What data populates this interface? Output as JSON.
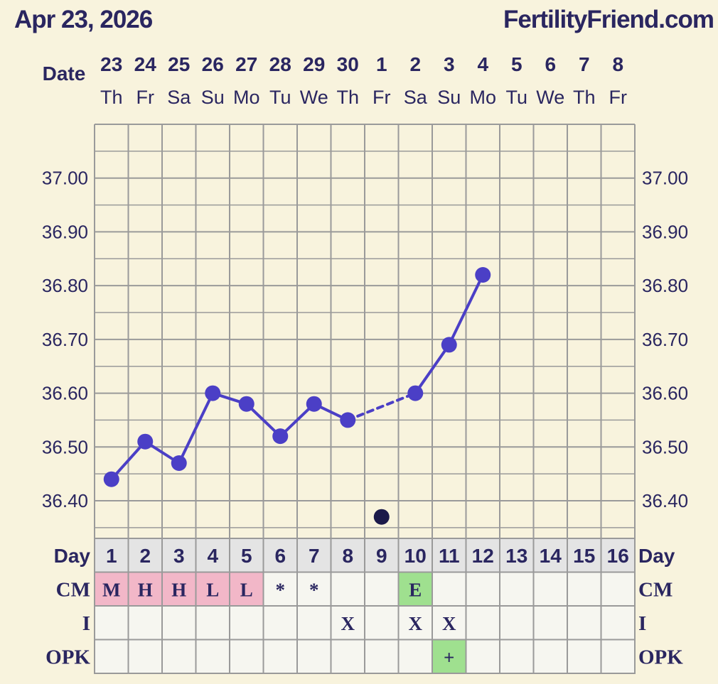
{
  "header": {
    "date": "Apr 23, 2026",
    "site": "FertilityFriend.com"
  },
  "labels": {
    "date": "Date",
    "day": "Day",
    "cm": "CM",
    "i": "I",
    "opk": "OPK"
  },
  "colors": {
    "background": "#f8f3dd",
    "plot_bg": "#f8f3dd",
    "grid": "#9a9a9a",
    "line": "#4b3fc6",
    "dark_dot": "#1c1a4a",
    "text": "#2a2660",
    "day_row_bg": "#e4e4e4",
    "cell_bg": "#f6f6f0",
    "cm_pink": "#f2b7c8",
    "cm_green": "#9fe08f"
  },
  "chart_data": {
    "type": "line",
    "dates": [
      "23",
      "24",
      "25",
      "26",
      "27",
      "28",
      "29",
      "30",
      "1",
      "2",
      "3",
      "4",
      "5",
      "6",
      "7",
      "8"
    ],
    "weekdays": [
      "Th",
      "Fr",
      "Sa",
      "Su",
      "Mo",
      "Tu",
      "We",
      "Th",
      "Fr",
      "Sa",
      "Su",
      "Mo",
      "Tu",
      "We",
      "Th",
      "Fr"
    ],
    "cycle_days": [
      "1",
      "2",
      "3",
      "4",
      "5",
      "6",
      "7",
      "8",
      "9",
      "10",
      "11",
      "12",
      "13",
      "14",
      "15",
      "16"
    ],
    "temperatures": [
      36.44,
      36.51,
      36.47,
      36.6,
      36.58,
      36.52,
      36.58,
      36.55,
      null,
      36.6,
      36.69,
      36.82,
      null,
      null,
      null,
      null
    ],
    "discarded_temperatures": [
      null,
      null,
      null,
      null,
      null,
      null,
      null,
      null,
      36.37,
      null,
      null,
      null,
      null,
      null,
      null,
      null
    ],
    "dashed_segment_between_days": [
      8,
      10
    ],
    "y_ticks": [
      "37.00",
      "36.90",
      "36.80",
      "36.70",
      "36.60",
      "36.50",
      "36.40"
    ],
    "y_tick_values": [
      37.0,
      36.9,
      36.8,
      36.7,
      36.6,
      36.5,
      36.4
    ],
    "ylim": [
      36.33,
      37.1
    ],
    "grid": true
  },
  "rows": {
    "cm": [
      "M",
      "H",
      "H",
      "L",
      "L",
      "*",
      "*",
      "",
      "",
      "E",
      "",
      "",
      "",
      "",
      "",
      ""
    ],
    "cm_colors": [
      "pink",
      "pink",
      "pink",
      "pink",
      "pink",
      "",
      "",
      "",
      "",
      "green",
      "",
      "",
      "",
      "",
      "",
      ""
    ],
    "i": [
      "",
      "",
      "",
      "",
      "",
      "",
      "",
      "X",
      "",
      "X",
      "X",
      "",
      "",
      "",
      "",
      ""
    ],
    "opk": [
      "",
      "",
      "",
      "",
      "",
      "",
      "",
      "",
      "",
      "",
      "+",
      "",
      "",
      "",
      "",
      ""
    ],
    "opk_colors": [
      "",
      "",
      "",
      "",
      "",
      "",
      "",
      "",
      "",
      "",
      "green",
      "",
      "",
      "",
      "",
      ""
    ]
  }
}
